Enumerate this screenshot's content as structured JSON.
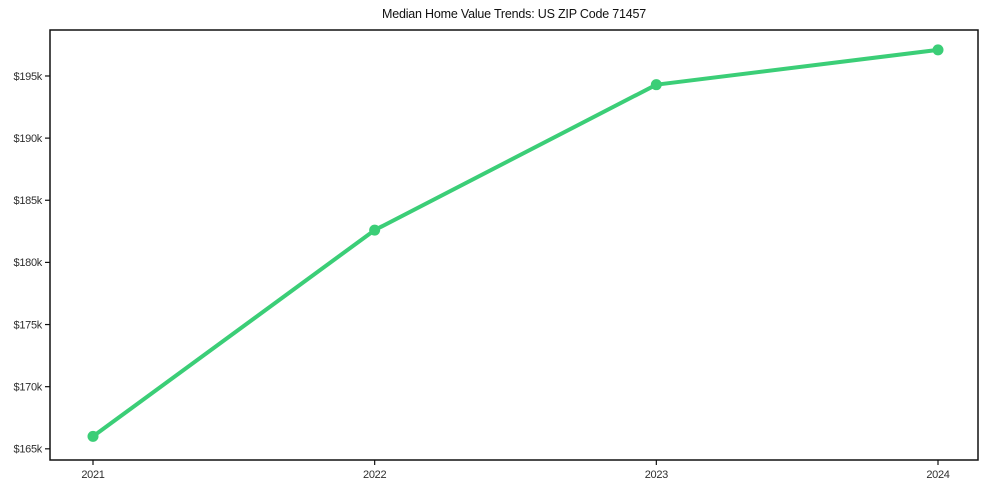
{
  "page": {
    "background_color": "#ffffff"
  },
  "chart_data": {
    "type": "line",
    "title": "Median Home Value Trends: US ZIP Code 71457",
    "xlabel": "",
    "ylabel": "",
    "categories": [
      "2021",
      "2022",
      "2023",
      "2024"
    ],
    "series": [
      {
        "name": "Median home value",
        "values": [
          166000,
          182600,
          194300,
          197100
        ]
      }
    ],
    "values_k": [
      166.0,
      182.6,
      194.3,
      197.1
    ],
    "yticks": [
      {
        "value": 165,
        "label": "$165k"
      },
      {
        "value": 170,
        "label": "$170k"
      },
      {
        "value": 175,
        "label": "$175k"
      },
      {
        "value": 180,
        "label": "$180k"
      },
      {
        "value": 185,
        "label": "$185k"
      },
      {
        "value": 190,
        "label": "$190k"
      },
      {
        "value": 195,
        "label": "$195k"
      }
    ],
    "ylim_k": [
      164.1,
      198.7
    ],
    "grid": false,
    "legend": "none",
    "line_color": "#3bce77",
    "marker_color": "#3bce77",
    "axis_color": "#111111",
    "tick_label_color": "#2e2e2e",
    "title_color": "#111111"
  }
}
